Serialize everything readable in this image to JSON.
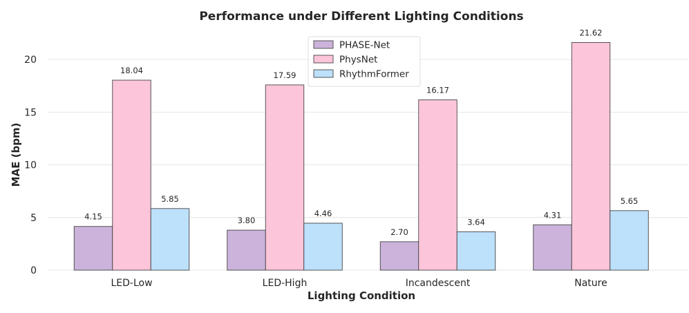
{
  "chart_data": {
    "type": "bar",
    "title": "Performance under Different Lighting Conditions",
    "xlabel": "Lighting Condition",
    "ylabel": "MAE (bpm)",
    "categories": [
      "LED-Low",
      "LED-High",
      "Incandescent",
      "Nature"
    ],
    "ylim": [
      0,
      22.7
    ],
    "yticks": [
      0,
      5,
      10,
      15,
      20
    ],
    "grid": true,
    "legend_position": "top-center",
    "series": [
      {
        "name": "PHASE-Net",
        "color": "#cbb3db",
        "values": [
          4.15,
          3.8,
          2.7,
          4.31
        ],
        "labels": [
          "4.15",
          "3.80",
          "2.70",
          "4.31"
        ]
      },
      {
        "name": "PhysNet",
        "color": "#fcc5da",
        "values": [
          18.04,
          17.59,
          16.17,
          21.62
        ],
        "labels": [
          "18.04",
          "17.59",
          "16.17",
          "21.62"
        ]
      },
      {
        "name": "RhythmFormer",
        "color": "#bde0fb",
        "values": [
          5.85,
          4.46,
          3.64,
          5.65
        ],
        "labels": [
          "5.85",
          "4.46",
          "3.64",
          "5.65"
        ]
      }
    ]
  }
}
